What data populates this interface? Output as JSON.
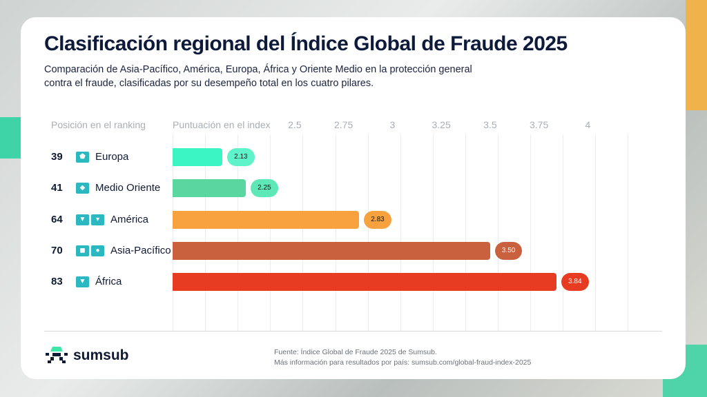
{
  "title": "Clasificación regional del Índice Global de Fraude 2025",
  "subtitle": "Comparación de Asia-Pacífico, América, Europa, África y Oriente Medio en la protección general contra el fraude, clasificadas por su desempeño total en los cuatro pilares.",
  "source_line1": "Fuente: Índice Global de Fraude 2025 de Sumsub.",
  "source_line2": "Más información para resultados por país: sumsub.com/global-fraud-index-2025",
  "logo_text": "sumsub",
  "chart_data": {
    "type": "bar",
    "orientation": "horizontal",
    "rank_header": "Posición en el ranking",
    "xlabel": "Puntuación en el index",
    "xticks": [
      "2.5",
      "2.75",
      "3",
      "3.25",
      "3.5",
      "3.75",
      "4"
    ],
    "grid": true,
    "categories": [
      "Europa",
      "Medio Oriente",
      "América",
      "Asia-Pacífico",
      "África"
    ],
    "ranks": [
      "39",
      "41",
      "64",
      "70",
      "83"
    ],
    "values": [
      2.13,
      2.25,
      2.83,
      3.5,
      3.84
    ],
    "labels": [
      "2.13",
      "2.25",
      "2.83",
      "3.50",
      "3.84"
    ],
    "icons": [
      [
        "europe-map-icon"
      ],
      [
        "middle-east-map-icon"
      ],
      [
        "north-america-map-icon",
        "south-america-map-icon"
      ],
      [
        "asia-map-icon",
        "australia-map-icon"
      ],
      [
        "africa-map-icon"
      ]
    ],
    "colors": [
      "#3cf5c4",
      "#5ad6a0",
      "#f7a23e",
      "#c9603e",
      "#e83c22"
    ],
    "pill_colors": [
      "#5ef3c8",
      "#5ee8b8",
      "#f7a23e",
      "#c9603e",
      "#e83c22"
    ]
  }
}
